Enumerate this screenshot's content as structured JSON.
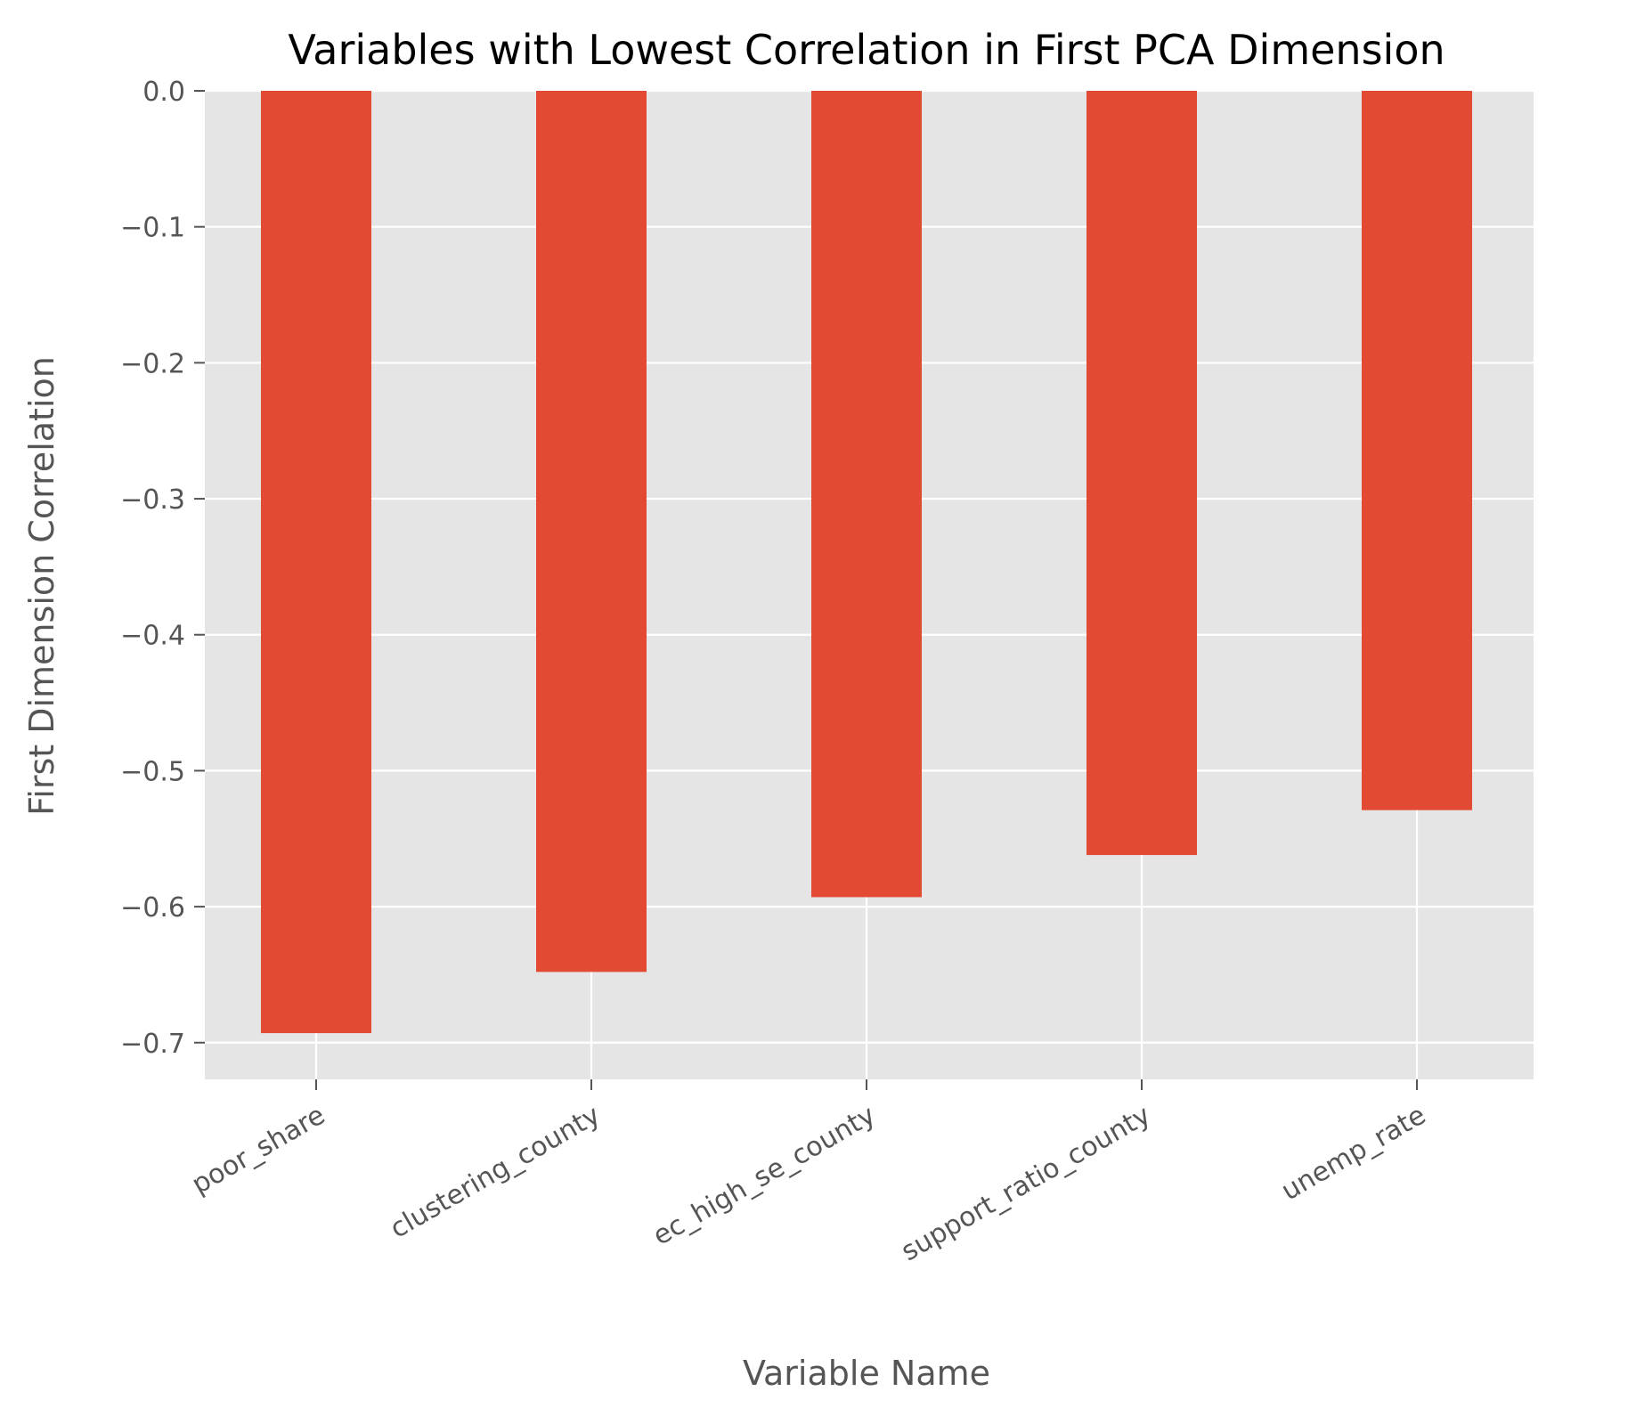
{
  "chart_data": {
    "type": "bar",
    "title": "Variables with Lowest Correlation in First PCA Dimension",
    "xlabel": "Variable Name",
    "ylabel": "First Dimension Correlation",
    "categories": [
      "poor_share",
      "clustering_county",
      "ec_high_se_county",
      "support_ratio_county",
      "unemp_rate"
    ],
    "values": [
      -0.693,
      -0.648,
      -0.593,
      -0.562,
      -0.529
    ],
    "ylim": [
      -0.727,
      0.0
    ],
    "yticks": [
      0.0,
      -0.1,
      -0.2,
      -0.3,
      -0.4,
      -0.5,
      -0.6,
      -0.7
    ],
    "ytick_labels": [
      "0.0",
      "−0.1",
      "−0.2",
      "−0.3",
      "−0.4",
      "−0.5",
      "−0.6",
      "−0.7"
    ],
    "grid": true,
    "colors": {
      "bar": "#e24a33",
      "plot_background": "#e5e5e5",
      "grid": "#ffffff",
      "tick": "#555555"
    }
  }
}
